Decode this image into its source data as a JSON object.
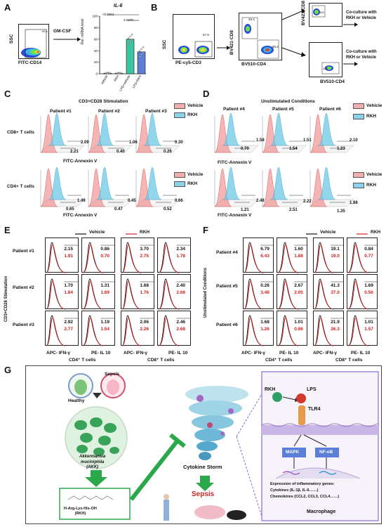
{
  "panels": {
    "A": "A",
    "B": "B",
    "C": "C",
    "D": "D",
    "E": "E",
    "F": "F",
    "G": "G"
  },
  "panelA": {
    "flow_x": "FITC-CD14",
    "flow_y": "SSC",
    "gate_value": "90.5",
    "arrow_label": "GM-CSF",
    "bar_title": "IL-6",
    "y_label": "Rel. mRNA  level",
    "pvals": [
      "<0.0001",
      "0.0370"
    ],
    "y_ticks": [
      "0",
      "20",
      "40",
      "60",
      "80",
      "100"
    ],
    "x_categories": [
      "Vehicle",
      "RKH",
      "LPS+Vehicle",
      "LPS+RKH"
    ]
  },
  "chart_data": {
    "type": "bar",
    "title": "IL-6",
    "ylabel": "Rel. mRNA  level",
    "xlabel": "",
    "categories": [
      "Vehicle",
      "RKH",
      "LPS+Vehicle",
      "LPS+RKH"
    ],
    "values": [
      1,
      1,
      60,
      38
    ],
    "ylim": [
      0,
      100
    ]
  },
  "panelB": {
    "ssc": "SSC",
    "cd3": "PE-cy5-CD3",
    "gate1": "67.9",
    "cd8_axis": "BV421-CD8",
    "cd4_axis": "BV510-CD4",
    "q1": "33.4",
    "q2": "60.2",
    "upper_val": "100",
    "lower_val": "100",
    "bv421": "BV421-CD8",
    "bv510": "BV510-CD4",
    "coculture1": "Co-culture with\nRKH or Vehicle",
    "coculture2": "Co-culture with\nRKH or Vehicle"
  },
  "panelC": {
    "title": "CD3+CD28 Stimulation",
    "patients": [
      "Patient #1",
      "Patient #2",
      "Patient #3"
    ],
    "cd8_label": "CD8+ T cells",
    "cd4_label": "CD4+ T cells",
    "axis": "FITC-Annexin V",
    "legend": [
      "Vehicle",
      "RKH"
    ],
    "cd8_rkh": [
      "2.09",
      "1.06",
      "0.30"
    ],
    "cd8_veh": [
      "2.21",
      "0.40",
      "0.26"
    ],
    "cd4_rkh": [
      "1.49",
      "0.45",
      "0.66"
    ],
    "cd4_veh": [
      "0.65",
      "0.47",
      "0.52"
    ]
  },
  "panelD": {
    "title": "Unstimulated Conditions",
    "patients": [
      "Patient #4",
      "Patient #5",
      "Patient #6"
    ],
    "axis": "FITC-Annexin V",
    "legend": [
      "Vehicle",
      "RKH"
    ],
    "cd8_rkh": [
      "1.58",
      "1.51",
      "2.10"
    ],
    "cd8_veh": [
      "0.70",
      "1.54",
      "1.23"
    ],
    "cd4_rkh": [
      "2.48",
      "2.22",
      "1.88"
    ],
    "cd4_veh": [
      "1.21",
      "2.51",
      "1.35"
    ]
  },
  "panelE": {
    "side": "CD3+CD28 Stimulation",
    "legend": [
      "Vehicle",
      "RKH"
    ],
    "patients": [
      "Patient #1",
      "Patient #2",
      "Patient #3"
    ],
    "cols": [
      "APC- IFN-γ",
      "PE- IL 10",
      "APC- IFN-γ",
      "PE- IL 10"
    ],
    "groups": [
      "CD4⁺ T cells",
      "CD8⁺ T cells"
    ],
    "black": [
      [
        "2.15",
        "0.86",
        "3.70",
        "2.34"
      ],
      [
        "1.70",
        "1.31",
        "1.68",
        "2.40"
      ],
      [
        "2.92",
        "1.19",
        "2.06",
        "2.46"
      ]
    ],
    "red": [
      [
        "1.91",
        "0.70",
        "2.75",
        "1.78"
      ],
      [
        "1.84",
        "1.69",
        "1.76",
        "2.68"
      ],
      [
        "2.77",
        "1.54",
        "2.26",
        "2.68"
      ]
    ]
  },
  "panelF": {
    "side": "Unstimulated Conditions",
    "legend": [
      "Vehicle",
      "RKH"
    ],
    "patients": [
      "Patient #4",
      "Patient #5",
      "Patient #6"
    ],
    "cols": [
      "APC- IFN-γ",
      "PE- IL 10",
      "APC- IFN-γ",
      "PE- IL 10"
    ],
    "groups": [
      "CD4⁺ T cells",
      "CD8⁺ T cells"
    ],
    "black": [
      [
        "6.79",
        "1.60",
        "19.1",
        "0.84"
      ],
      [
        "0.26",
        "2.67",
        "41.3",
        "1.69"
      ],
      [
        "1.68",
        "1.01",
        "21.9",
        "1.01"
      ]
    ],
    "red": [
      [
        "6.43",
        "1.88",
        "19.0",
        "0.77"
      ],
      [
        "3.48",
        "2.05",
        "37.0",
        "0.56"
      ],
      [
        "1.26",
        "0.86",
        "26.3",
        "1.57"
      ]
    ]
  },
  "panelG": {
    "healthy": "Healthy",
    "sepsis": "Sepsis",
    "akk": "Akkermansia\nmuciniphila\n(AKK)",
    "rkh_name": "H-Arg-Lys-His-OH\n(RKH)",
    "storm": "Cytokine Storm",
    "sepsis_red": "Sepsis",
    "rkh": "RKH",
    "lps": "LPS",
    "tlr4": "TLR4",
    "mapk": "MAPK",
    "nfkb": "NF-κB",
    "expression": "Expression of inflammatory genes:",
    "cytokines": "Cytokines (IL-1β, IL-6……)",
    "chemokines": "Chemokines (CCL2, CCL3, CCL4……)",
    "macrophage": "Macrophage"
  }
}
